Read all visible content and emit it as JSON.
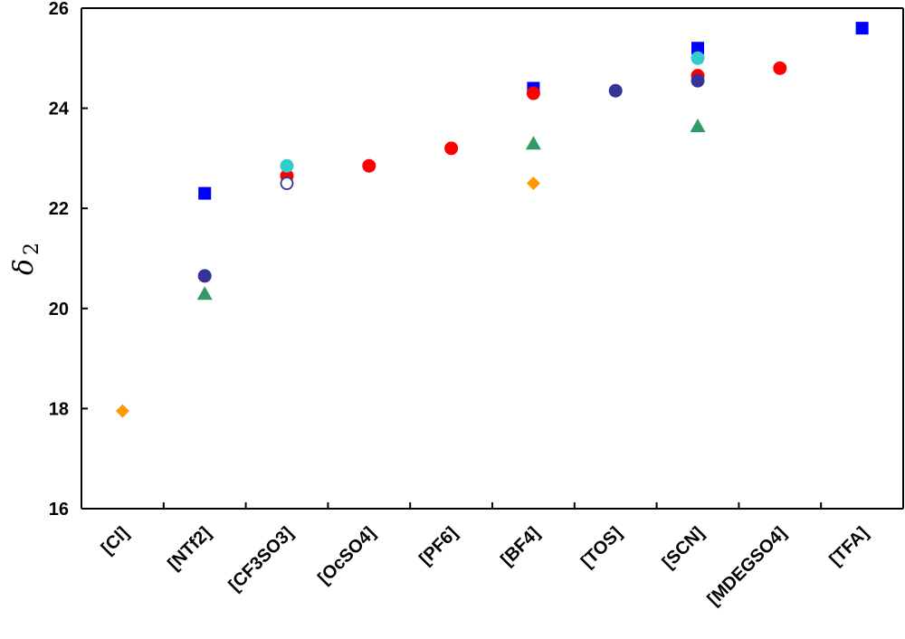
{
  "chart_data": {
    "type": "scatter",
    "title": "",
    "xlabel": "",
    "ylabel": "δ 2",
    "ylim": [
      16,
      26
    ],
    "yticks": [
      16,
      18,
      20,
      22,
      24,
      26
    ],
    "grid": false,
    "categories": [
      "[Cl]",
      "[NTf2]",
      "[CF3SO3]",
      "[OcSO4]",
      "[PF6]",
      "[BF4]",
      "[TOS]",
      "[SCN]",
      "[MDEGSO4]",
      "[TFA]"
    ],
    "series": [
      {
        "marker": "square",
        "color": "#0000ff",
        "points": [
          {
            "category": "[NTf2]",
            "y": 22.3
          },
          {
            "category": "[BF4]",
            "y": 24.4
          },
          {
            "category": "[SCN]",
            "y": 25.2
          },
          {
            "category": "[TFA]",
            "y": 25.6
          }
        ]
      },
      {
        "marker": "circle",
        "color": "#ff0000",
        "points": [
          {
            "category": "[CF3SO3]",
            "y": 22.65
          },
          {
            "category": "[OcSO4]",
            "y": 22.85
          },
          {
            "category": "[PF6]",
            "y": 23.2
          },
          {
            "category": "[BF4]",
            "y": 24.3
          },
          {
            "category": "[SCN]",
            "y": 24.65
          },
          {
            "category": "[MDEGSO4]",
            "y": 24.8
          }
        ]
      },
      {
        "marker": "circle",
        "color": "#333399",
        "points": [
          {
            "category": "[NTf2]",
            "y": 20.65
          },
          {
            "category": "[TOS]",
            "y": 24.35
          },
          {
            "category": "[SCN]",
            "y": 24.55
          }
        ]
      },
      {
        "marker": "circle",
        "color": "#33cccc",
        "points": [
          {
            "category": "[CF3SO3]",
            "y": 22.85
          },
          {
            "category": "[SCN]",
            "y": 25.0
          }
        ]
      },
      {
        "marker": "open-circle",
        "color": "#333399",
        "points": [
          {
            "category": "[CF3SO3]",
            "y": 22.5
          }
        ]
      },
      {
        "marker": "triangle",
        "color": "#339966",
        "points": [
          {
            "category": "[NTf2]",
            "y": 20.3
          },
          {
            "category": "[BF4]",
            "y": 23.3
          },
          {
            "category": "[SCN]",
            "y": 23.65
          }
        ]
      },
      {
        "marker": "diamond",
        "color": "#ff9900",
        "points": [
          {
            "category": "[Cl]",
            "y": 17.95
          },
          {
            "category": "[BF4]",
            "y": 22.5
          }
        ]
      }
    ]
  }
}
